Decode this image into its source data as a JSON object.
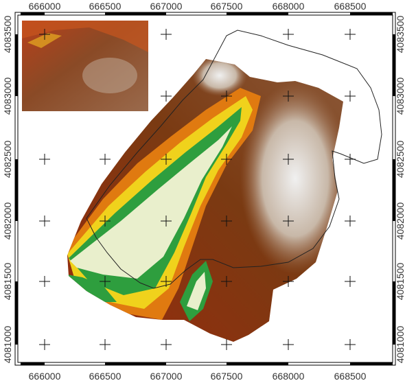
{
  "map": {
    "x_axis": {
      "top_labels": [
        "666000",
        "666500",
        "667000",
        "667500",
        "668000",
        "668500"
      ],
      "bottom_labels": [
        "666000",
        "666500",
        "667000",
        "667500",
        "668000",
        "668500"
      ]
    },
    "y_axis": {
      "left_labels": [
        "4083500",
        "4083000",
        "4082500",
        "4082000",
        "4081500",
        "4081000"
      ],
      "right_labels": [
        "4083500",
        "4083000",
        "4082500",
        "4082000",
        "4081500",
        "4081000"
      ]
    },
    "colors": {
      "low": "#e9efcc",
      "green": "#2e9e3e",
      "yellow": "#f0d21c",
      "orange": "#e07a10",
      "red_brown": "#9a2a0c",
      "brown": "#7a3a12",
      "light_brown": "#a8806a",
      "high": "#e8e8e8",
      "frame": "#000000",
      "boundary": "#222222"
    }
  }
}
